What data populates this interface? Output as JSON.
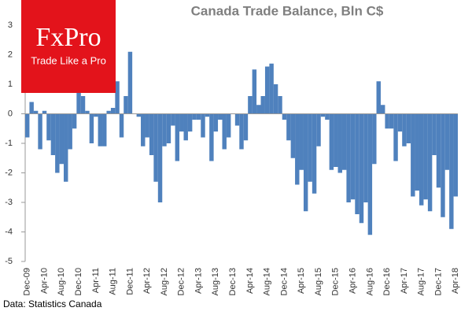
{
  "chart_data": {
    "type": "bar",
    "title": "Canada Trade Balance, Bln C$",
    "logo": "FxPro",
    "logo_tagline": "Trade Like a Pro",
    "source": "Data: Statistics Canada",
    "color": "#4f81bd",
    "grid": false,
    "ylim": [
      -5,
      3
    ],
    "yticks": [
      -5,
      -4,
      -3,
      -2,
      -1,
      0,
      1,
      2,
      3
    ],
    "categories": [
      "Dec-09",
      null,
      null,
      null,
      "Apr-10",
      null,
      null,
      null,
      "Aug-10",
      null,
      null,
      null,
      "Dec-10",
      null,
      null,
      null,
      "Apr-11",
      null,
      null,
      null,
      "Aug-11",
      null,
      null,
      null,
      "Dec-11",
      null,
      null,
      null,
      "Apr-12",
      null,
      null,
      null,
      "Aug-12",
      null,
      null,
      null,
      "Dec-12",
      null,
      null,
      null,
      "Apr-13",
      null,
      null,
      null,
      "Aug-13",
      null,
      null,
      null,
      "Dec-13",
      null,
      null,
      null,
      "Apr-14",
      null,
      null,
      null,
      "Aug-14",
      null,
      null,
      null,
      "Dec-14",
      null,
      null,
      null,
      "Apr-15",
      null,
      null,
      null,
      "Aug-15",
      null,
      null,
      null,
      "Dec-15",
      null,
      null,
      null,
      "Apr-16",
      null,
      null,
      null,
      "Aug-16",
      null,
      null,
      null,
      "Dec-16",
      null,
      null,
      null,
      "Apr-17",
      null,
      null,
      null,
      "Aug-17",
      null,
      null,
      null,
      "Dec-17",
      null,
      null,
      null,
      "Apr-18"
    ],
    "values": [
      -0.8,
      0.4,
      0.1,
      -1.2,
      0.1,
      -0.9,
      -1.4,
      -2.0,
      -1.7,
      -2.3,
      -1.2,
      -0.5,
      1.0,
      0.6,
      0.1,
      -1.0,
      -0.1,
      -1.1,
      -1.1,
      0.1,
      0.2,
      1.1,
      -0.8,
      0.6,
      2.1,
      0.0,
      -0.1,
      -1.1,
      -0.8,
      -1.4,
      -2.3,
      -3.0,
      -1.1,
      -1.0,
      -0.4,
      -1.6,
      -0.6,
      -0.9,
      -0.6,
      -0.2,
      -0.2,
      -0.8,
      -0.1,
      -1.6,
      -0.6,
      -0.2,
      -1.2,
      -0.8,
      0.0,
      -0.4,
      -1.2,
      -0.9,
      0.6,
      1.5,
      0.3,
      0.6,
      1.6,
      1.7,
      1.0,
      0.6,
      -0.2,
      -0.9,
      -1.5,
      -2.4,
      -1.9,
      -3.3,
      -2.3,
      -2.7,
      -1.1,
      -0.1,
      -0.2,
      -1.9,
      -1.8,
      -2.0,
      -1.9,
      -3.0,
      -2.9,
      -3.4,
      -3.7,
      -3.0,
      -4.1,
      -1.7,
      1.1,
      0.3,
      -0.5,
      -0.5,
      -1.6,
      -0.6,
      -1.1,
      -1.0,
      -2.8,
      -2.6,
      -3.1,
      -2.9,
      -3.3,
      -1.4,
      -2.5,
      -3.5,
      -1.9,
      -3.9,
      -2.8
    ]
  }
}
